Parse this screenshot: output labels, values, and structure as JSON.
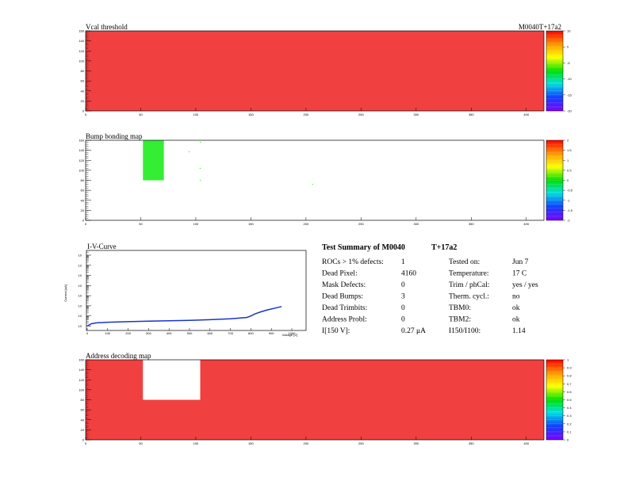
{
  "chart_data": [
    {
      "type": "heatmap",
      "title": "Vcal threshold",
      "module_label": "M0040T+17a2",
      "xlim": [
        0,
        416
      ],
      "ylim": [
        0,
        160
      ],
      "x_ticks": [
        "0",
        "50",
        "100",
        "150",
        "200",
        "250",
        "300",
        "350",
        "400"
      ],
      "y_ticks": [
        "0",
        "20",
        "40",
        "60",
        "80",
        "100",
        "120",
        "140",
        "160"
      ],
      "fill_color": "#f04040",
      "rects": [],
      "dots": [],
      "colorbar": {
        "ticks": [
          "10",
          "0",
          "-5",
          "-10",
          "-15",
          "-20"
        ],
        "label_fracs": [
          0.0,
          0.2,
          0.4,
          0.6,
          0.8,
          1.0
        ]
      }
    },
    {
      "type": "heatmap",
      "title": "Bump bonding map",
      "xlim": [
        0,
        416
      ],
      "ylim": [
        0,
        160
      ],
      "x_ticks": [
        "0",
        "50",
        "100",
        "150",
        "200",
        "250",
        "300",
        "350",
        "400"
      ],
      "y_ticks": [
        "0",
        "20",
        "40",
        "60",
        "80",
        "100",
        "120",
        "140",
        "160"
      ],
      "fill_color": "#ffffff",
      "rects": [
        {
          "x0": 52,
          "x1": 71,
          "y0": 80,
          "y1": 160,
          "color": "#33ee33"
        }
      ],
      "dots": [
        {
          "x": 94,
          "y": 137,
          "color": "#33ee33"
        },
        {
          "x": 104,
          "y": 156,
          "color": "#33ee33"
        },
        {
          "x": 104,
          "y": 104,
          "color": "#33ee33"
        },
        {
          "x": 104,
          "y": 80,
          "color": "#33ee33"
        },
        {
          "x": 206,
          "y": 72,
          "color": "#33ee33"
        }
      ],
      "colorbar": {
        "ticks": [
          "2",
          "1.5",
          "1",
          "0.5",
          "0",
          "-0.5",
          "-1",
          "-1.5",
          "-2"
        ],
        "label_fracs": [
          0.0,
          0.125,
          0.25,
          0.375,
          0.5,
          0.625,
          0.75,
          0.875,
          1.0
        ]
      }
    },
    {
      "type": "heatmap",
      "title": "Address decoding map",
      "xlim": [
        0,
        416
      ],
      "ylim": [
        0,
        160
      ],
      "x_ticks": [
        "0",
        "50",
        "100",
        "150",
        "200",
        "250",
        "300",
        "350",
        "400"
      ],
      "y_ticks": [
        "0",
        "20",
        "40",
        "60",
        "80",
        "100",
        "120",
        "140",
        "160"
      ],
      "fill_color": "#f04040",
      "rects": [
        {
          "x0": 52,
          "x1": 104,
          "y0": 80,
          "y1": 160,
          "color": "#ffffff"
        }
      ],
      "dots": [],
      "colorbar": {
        "ticks": [
          "1",
          "0.9",
          "0.8",
          "0.7",
          "0.6",
          "0.5",
          "0.4",
          "0.3",
          "0.2",
          "0.1",
          "0"
        ],
        "label_fracs": [
          0.0,
          0.1,
          0.2,
          0.3,
          0.4,
          0.5,
          0.6,
          0.7,
          0.8,
          0.9,
          1.0
        ]
      }
    },
    {
      "type": "line",
      "title": "I-V-Curve",
      "xlabel": "Voltage [V]",
      "ylabel": "Current [uA]",
      "xlim": [
        0,
        1000
      ],
      "x_ticks": [
        "0",
        "100",
        "200",
        "300",
        "400",
        "500",
        "600",
        "700",
        "800",
        "900",
        "1000"
      ],
      "y_scale": "log",
      "y_ticks": [
        "10",
        "10",
        "10",
        "10",
        "10",
        "10",
        "10",
        "10"
      ],
      "line_color": "#1a33cc",
      "x": [
        0,
        20,
        50,
        100,
        200,
        300,
        400,
        500,
        600,
        700,
        780,
        800,
        820,
        850,
        880,
        920,
        950
      ],
      "y": [
        0.1,
        0.17,
        0.21,
        0.24,
        0.27,
        0.3,
        0.33,
        0.37,
        0.43,
        0.52,
        0.7,
        1.0,
        1.6,
        2.6,
        3.9,
        6.0,
        8.5
      ]
    }
  ],
  "summary": {
    "heading": "Test Summary of M0040",
    "heading_tag": "T+17a2",
    "left": [
      {
        "label": "ROCs > 1% defects:",
        "value": "1"
      },
      {
        "label": "Dead Pixel:",
        "value": "4160"
      },
      {
        "label": "Mask Defects:",
        "value": "0"
      },
      {
        "label": "Dead Bumps:",
        "value": "3"
      },
      {
        "label": "Dead Trimbits:",
        "value": "0"
      },
      {
        "label": "Address Probl:",
        "value": "0"
      },
      {
        "label": "I[150 V]:",
        "value": "0.27 μA"
      }
    ],
    "right": [
      {
        "label": "Tested on:",
        "value": "Jun 7"
      },
      {
        "label": "Temperature:",
        "value": "17 C"
      },
      {
        "label": "Trim / phCal:",
        "value": "yes / yes"
      },
      {
        "label": "Therm. cycl.:",
        "value": "no"
      },
      {
        "label": "TBM0:",
        "value": "ok"
      },
      {
        "label": "TBM2:",
        "value": "ok"
      },
      {
        "label": "I150/I100:",
        "value": "1.14"
      }
    ]
  }
}
